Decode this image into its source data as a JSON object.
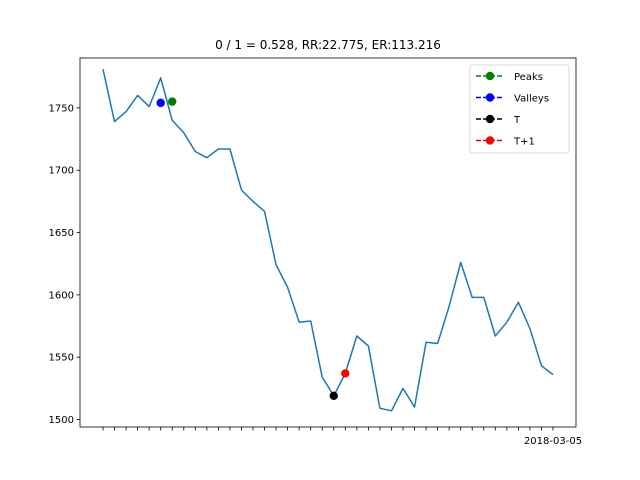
{
  "chart_data": {
    "type": "line",
    "title": "0 / 1 = 0.528, RR:22.775, ER:113.216",
    "xlabel": "",
    "ylabel": "",
    "ylim": [
      1494,
      1790
    ],
    "yticks": [
      1500,
      1550,
      1600,
      1650,
      1700,
      1750
    ],
    "x_last_label": "2018-03-05",
    "grid": false,
    "legend_position": "top-right",
    "line_color": "#1f77b4",
    "series": [
      {
        "values": [
          1781,
          1739,
          1747,
          1760,
          1751,
          1774,
          1740,
          1730,
          1715,
          1710,
          1717,
          1717,
          1684,
          1675,
          1667,
          1624,
          1606,
          1578,
          1579,
          1534,
          1519,
          1537,
          1567,
          1559,
          1509,
          1507,
          1525,
          1510,
          1562,
          1561,
          1591,
          1626,
          1598,
          1598,
          1567,
          1578,
          1594,
          1573,
          1543,
          1536
        ]
      }
    ],
    "markers": [
      {
        "name": "Peaks",
        "color": "#008000",
        "points": [
          {
            "index": 6,
            "value": 1755
          }
        ]
      },
      {
        "name": "Valleys",
        "color": "#0000ff",
        "points": [
          {
            "index": 5,
            "value": 1754
          }
        ]
      },
      {
        "name": "T",
        "color": "#000000",
        "points": [
          {
            "index": 20,
            "value": 1519
          }
        ]
      },
      {
        "name": "T+1",
        "color": "#ff0000",
        "points": [
          {
            "index": 21,
            "value": 1537
          }
        ]
      }
    ]
  }
}
